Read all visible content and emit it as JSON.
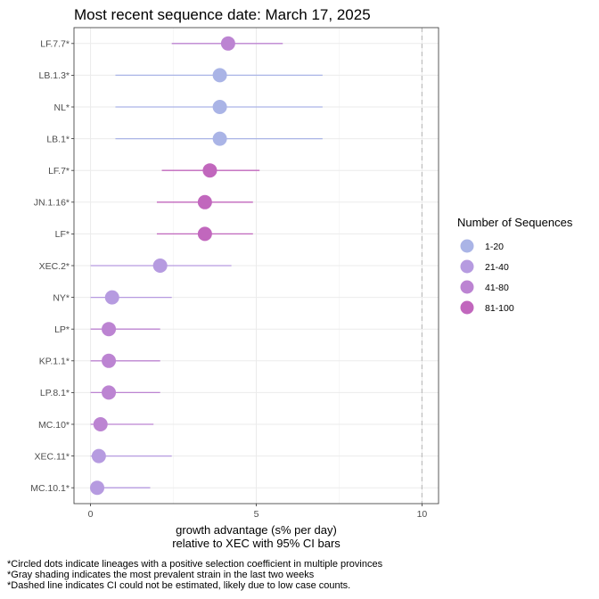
{
  "chart_data": {
    "type": "scatter",
    "title": "Most recent sequence date: March 17, 2025",
    "xlabel_line1": "growth advantage (s% per day)",
    "xlabel_line2": "relative to  XEC  with 95% CI bars",
    "xlim": [
      -0.5,
      10.5
    ],
    "xticks": [
      0,
      5,
      10
    ],
    "x_tick_labels": [
      "0",
      "5",
      "10"
    ],
    "dashed_reference_x": 10,
    "grid": true,
    "legend": {
      "title": "Number of Sequences",
      "position": "right",
      "entries": [
        {
          "label": "1-20",
          "color": "#aab4e6"
        },
        {
          "label": "21-40",
          "color": "#b69be0"
        },
        {
          "label": "41-80",
          "color": "#bc84d2"
        },
        {
          "label": "81-100",
          "color": "#c167bd"
        }
      ]
    },
    "series": [
      {
        "lineage": "LF.7.7*",
        "estimate": 4.15,
        "ci_low": 2.45,
        "ci_high": 5.8,
        "bin": "41-80"
      },
      {
        "lineage": "LB.1.3*",
        "estimate": 3.9,
        "ci_low": 0.75,
        "ci_high": 7.0,
        "bin": "1-20"
      },
      {
        "lineage": "NL*",
        "estimate": 3.9,
        "ci_low": 0.75,
        "ci_high": 7.0,
        "bin": "1-20"
      },
      {
        "lineage": "LB.1*",
        "estimate": 3.9,
        "ci_low": 0.75,
        "ci_high": 7.0,
        "bin": "1-20"
      },
      {
        "lineage": "LF.7*",
        "estimate": 3.6,
        "ci_low": 2.15,
        "ci_high": 5.1,
        "bin": "81-100"
      },
      {
        "lineage": "JN.1.16*",
        "estimate": 3.45,
        "ci_low": 2.0,
        "ci_high": 4.9,
        "bin": "81-100"
      },
      {
        "lineage": "LF*",
        "estimate": 3.45,
        "ci_low": 2.0,
        "ci_high": 4.9,
        "bin": "81-100"
      },
      {
        "lineage": "XEC.2*",
        "estimate": 2.1,
        "ci_low": 0.0,
        "ci_high": 4.25,
        "bin": "21-40"
      },
      {
        "lineage": "NY*",
        "estimate": 0.65,
        "ci_low": 0.0,
        "ci_high": 2.45,
        "bin": "21-40"
      },
      {
        "lineage": "LP*",
        "estimate": 0.55,
        "ci_low": 0.0,
        "ci_high": 2.1,
        "bin": "41-80"
      },
      {
        "lineage": "KP.1.1*",
        "estimate": 0.55,
        "ci_low": 0.0,
        "ci_high": 2.1,
        "bin": "41-80"
      },
      {
        "lineage": "LP.8.1*",
        "estimate": 0.55,
        "ci_low": 0.0,
        "ci_high": 2.1,
        "bin": "41-80"
      },
      {
        "lineage": "MC.10*",
        "estimate": 0.3,
        "ci_low": 0.0,
        "ci_high": 1.9,
        "bin": "41-80"
      },
      {
        "lineage": "XEC.11*",
        "estimate": 0.25,
        "ci_low": 0.0,
        "ci_high": 2.45,
        "bin": "21-40"
      },
      {
        "lineage": "MC.10.1*",
        "estimate": 0.2,
        "ci_low": 0.0,
        "ci_high": 1.8,
        "bin": "21-40"
      }
    ]
  },
  "footnotes": [
    "*Circled dots indicate lineages with a positive selection coefficient in multiple provinces",
    "*Gray shading indicates the most prevalent strain in the last two weeks",
    "*Dashed line indicates CI could not be estimated, likely due to low case counts."
  ]
}
